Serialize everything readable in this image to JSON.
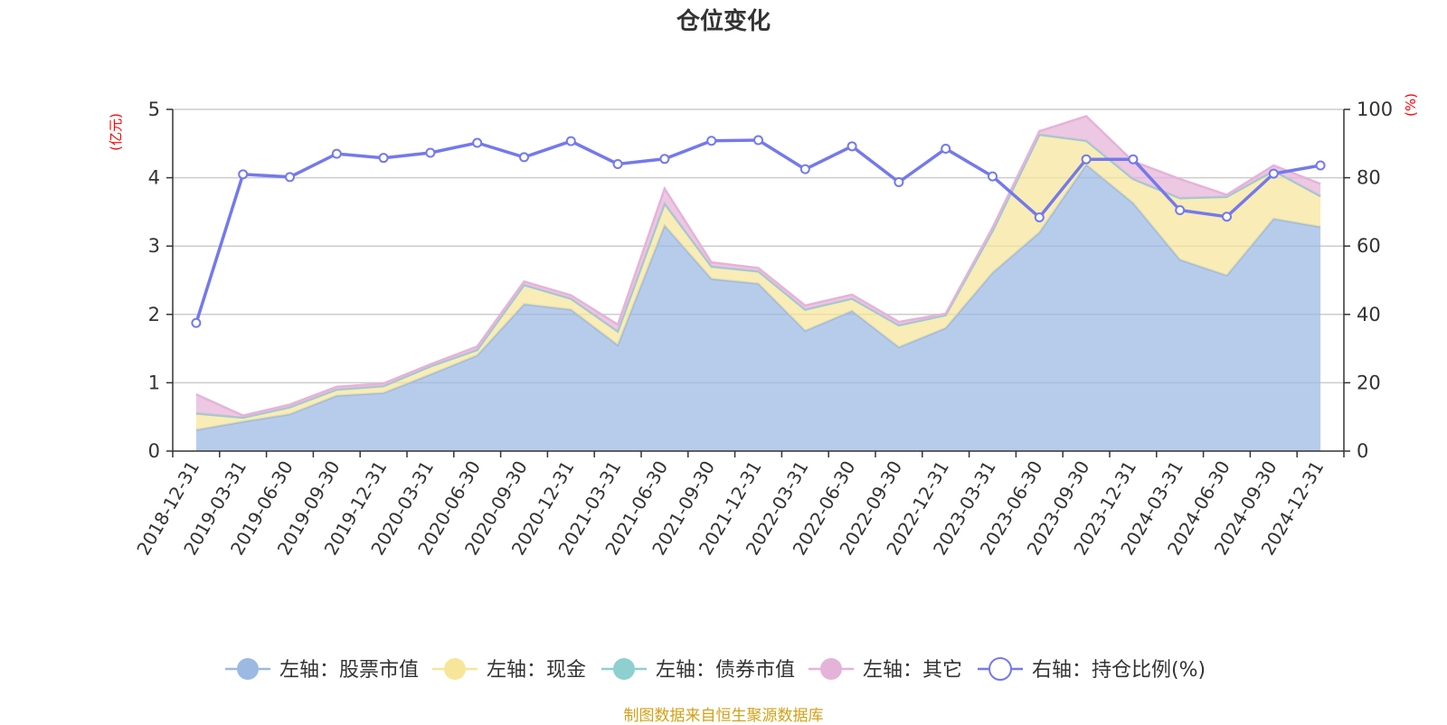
{
  "chart_data": {
    "type": "area",
    "title": "仓位变化",
    "y_left_unit": "(亿元)",
    "y_right_unit": "(%)",
    "ylim_left": [
      0,
      5
    ],
    "ylim_right": [
      0,
      100
    ],
    "y_left_ticks": [
      "0",
      "1",
      "2",
      "3",
      "4",
      "5"
    ],
    "y_right_ticks": [
      "0",
      "20",
      "40",
      "60",
      "80",
      "100"
    ],
    "grid": true,
    "legend_position": "bottom",
    "categories": [
      "2018-12-31",
      "2019-03-31",
      "2019-06-30",
      "2019-09-30",
      "2019-12-31",
      "2020-03-31",
      "2020-06-30",
      "2020-09-30",
      "2020-12-31",
      "2021-03-31",
      "2021-06-30",
      "2021-09-30",
      "2021-12-31",
      "2022-03-31",
      "2022-06-30",
      "2022-09-30",
      "2022-12-31",
      "2023-03-31",
      "2023-06-30",
      "2023-09-30",
      "2023-12-31",
      "2024-03-31",
      "2024-06-30",
      "2024-09-30",
      "2024-12-31"
    ],
    "series": [
      {
        "name": "左轴：股票市值",
        "axis": "left",
        "stack": true,
        "color": "#9bb9e3",
        "values": [
          0.31,
          0.43,
          0.54,
          0.81,
          0.85,
          1.12,
          1.4,
          2.15,
          2.07,
          1.55,
          3.3,
          2.52,
          2.45,
          1.76,
          2.05,
          1.52,
          1.8,
          2.61,
          3.2,
          4.19,
          3.63,
          2.8,
          2.57,
          3.4,
          3.28
        ]
      },
      {
        "name": "左轴：现金",
        "axis": "left",
        "stack": true,
        "color": "#f7e59a",
        "values": [
          0.24,
          0.06,
          0.1,
          0.09,
          0.1,
          0.12,
          0.08,
          0.28,
          0.16,
          0.2,
          0.32,
          0.18,
          0.18,
          0.31,
          0.18,
          0.32,
          0.19,
          0.61,
          1.43,
          0.35,
          0.35,
          0.9,
          1.15,
          0.7,
          0.45
        ]
      },
      {
        "name": "左轴：债券市值",
        "axis": "left",
        "stack": true,
        "color": "#8ecfcf",
        "values": [
          0,
          0,
          0,
          0,
          0,
          0,
          0,
          0,
          0,
          0,
          0,
          0,
          0,
          0,
          0,
          0,
          0,
          0,
          0,
          0,
          0,
          0,
          0,
          0,
          0
        ]
      },
      {
        "name": "左轴：其它",
        "axis": "left",
        "stack": true,
        "color": "#e5b3d8",
        "values": [
          0.28,
          0.03,
          0.04,
          0.04,
          0.04,
          0.03,
          0.05,
          0.05,
          0.05,
          0.1,
          0.22,
          0.06,
          0.05,
          0.06,
          0.06,
          0.05,
          0.02,
          0.05,
          0.05,
          0.36,
          0.26,
          0.28,
          0.03,
          0.08,
          0.18
        ]
      },
      {
        "name": "右轴：持仓比例(%)",
        "axis": "right",
        "stack": false,
        "color": "#7479ec",
        "values": [
          37.5,
          81.0,
          80.2,
          87.0,
          85.8,
          87.3,
          90.2,
          86.0,
          90.7,
          84.0,
          85.5,
          90.8,
          91.0,
          82.5,
          89.2,
          78.7,
          88.5,
          80.4,
          68.4,
          85.4,
          85.4,
          70.5,
          68.6,
          81.2,
          83.6
        ]
      }
    ]
  },
  "footer": {
    "source": "制图数据来自恒生聚源数据库"
  }
}
